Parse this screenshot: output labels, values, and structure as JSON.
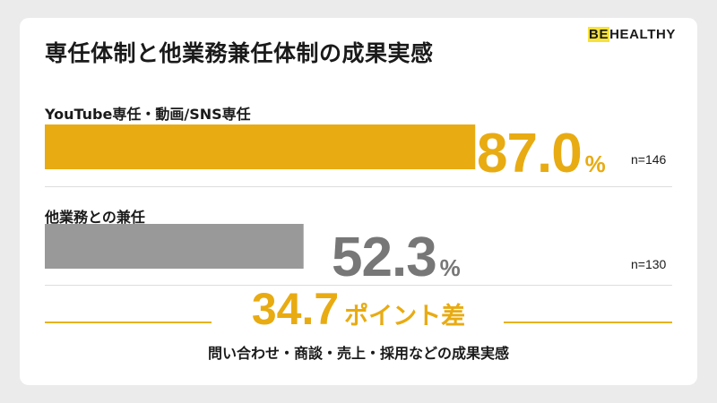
{
  "title": "専任体制と他業務兼任体制の成果実感",
  "logo": {
    "highlight": "BE",
    "rest": "HEALTHY"
  },
  "colors": {
    "primary": "#e8ab12",
    "secondary": "#999999",
    "highlight": "#f7e23a"
  },
  "chart_data": {
    "type": "bar",
    "orientation": "horizontal",
    "categories": [
      "YouTube専任・動画/SNS専任",
      "他業務との兼任"
    ],
    "series": [
      {
        "values": [
          87.0,
          52.3
        ]
      }
    ],
    "display_values": [
      "87.0",
      "52.3"
    ],
    "unit": "%",
    "n_labels": [
      "n=146",
      "n=130"
    ],
    "xlim": [
      0,
      100
    ],
    "grid": false
  },
  "difference": {
    "value": "34.7",
    "label": "ポイント差"
  },
  "caption": "問い合わせ・商談・売上・採用などの成果実感"
}
